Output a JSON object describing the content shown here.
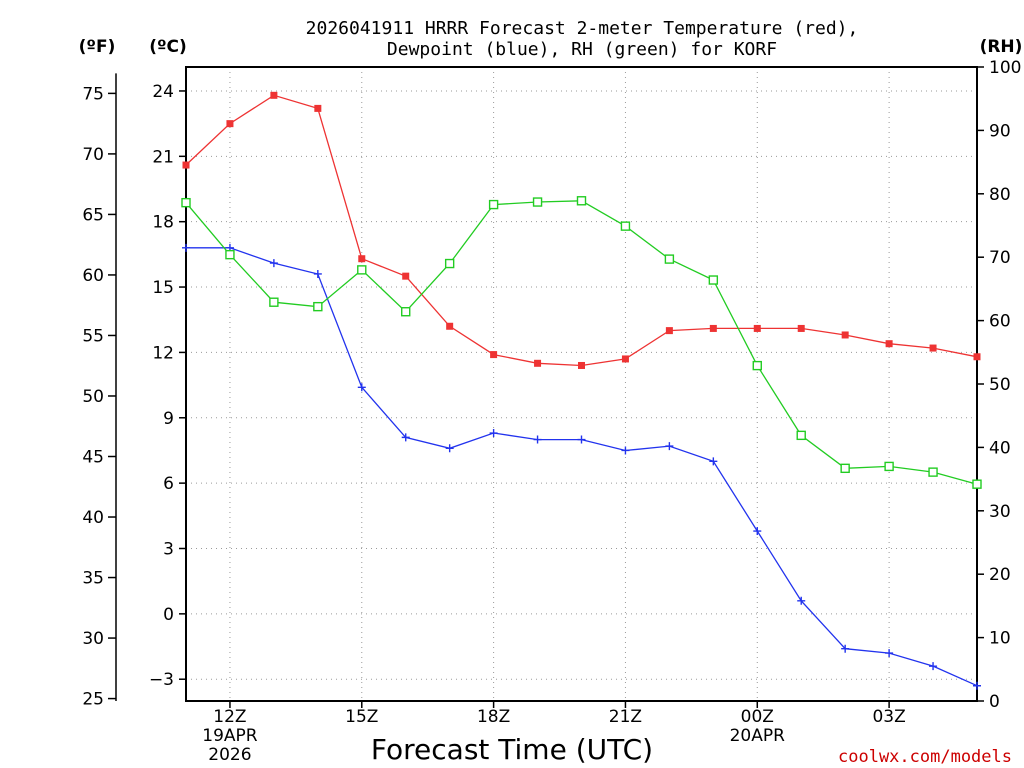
{
  "chart_data": {
    "type": "line",
    "title_line1": "2026041911 HRRR Forecast 2-meter Temperature (red),",
    "title_line2": "Dewpoint (blue), RH (green) for KORF",
    "xlabel": "Forecast Time (UTC)",
    "unit_f": "(ºF)",
    "unit_c": "(ºC)",
    "unit_rh": "(RH)",
    "credit": "coolwx.com/models",
    "x_hours": [
      11,
      12,
      13,
      14,
      15,
      16,
      17,
      18,
      19,
      20,
      21,
      22,
      23,
      24,
      25,
      26,
      27,
      28,
      29
    ],
    "x_ticks": [
      {
        "hour": 12,
        "label": "12Z",
        "sub1": "19APR",
        "sub2": "2026"
      },
      {
        "hour": 15,
        "label": "15Z",
        "sub1": "",
        "sub2": ""
      },
      {
        "hour": 18,
        "label": "18Z",
        "sub1": "",
        "sub2": ""
      },
      {
        "hour": 21,
        "label": "21Z",
        "sub1": "",
        "sub2": ""
      },
      {
        "hour": 24,
        "label": "00Z",
        "sub1": "20APR",
        "sub2": ""
      },
      {
        "hour": 27,
        "label": "03Z",
        "sub1": "",
        "sub2": ""
      }
    ],
    "c_range": [
      -4,
      25.1
    ],
    "c_ticks": [
      -3,
      0,
      3,
      6,
      9,
      12,
      15,
      18,
      21,
      24
    ],
    "f_ticks": [
      25,
      30,
      35,
      40,
      45,
      50,
      55,
      60,
      65,
      70,
      75
    ],
    "rh_range": [
      0,
      100
    ],
    "rh_ticks": [
      0,
      10,
      20,
      30,
      40,
      50,
      60,
      70,
      80,
      90,
      100
    ],
    "series": [
      {
        "name": "Temperature",
        "unit": "C",
        "color": "#ee3333",
        "marker": "filled-square",
        "values": [
          20.6,
          22.5,
          23.8,
          23.2,
          16.3,
          15.5,
          13.2,
          11.9,
          11.5,
          11.4,
          11.7,
          13.0,
          13.1,
          13.1,
          13.1,
          12.8,
          12.4,
          12.2,
          11.8
        ]
      },
      {
        "name": "Dewpoint",
        "unit": "C",
        "color": "#2233ee",
        "marker": "plus",
        "values": [
          16.8,
          16.8,
          16.1,
          15.6,
          10.4,
          8.1,
          7.6,
          8.3,
          8.0,
          8.0,
          7.5,
          7.7,
          7.0,
          3.8,
          0.6,
          -1.6,
          -1.8,
          -2.4,
          -3.3
        ]
      },
      {
        "name": "RH",
        "unit": "%",
        "color": "#22cc22",
        "marker": "open-square",
        "values": [
          78.6,
          70.4,
          62.9,
          62.2,
          68.0,
          61.4,
          69.0,
          78.3,
          78.7,
          78.9,
          74.9,
          69.7,
          66.4,
          52.9,
          41.9,
          36.7,
          37.0,
          36.1,
          34.2
        ]
      }
    ]
  }
}
